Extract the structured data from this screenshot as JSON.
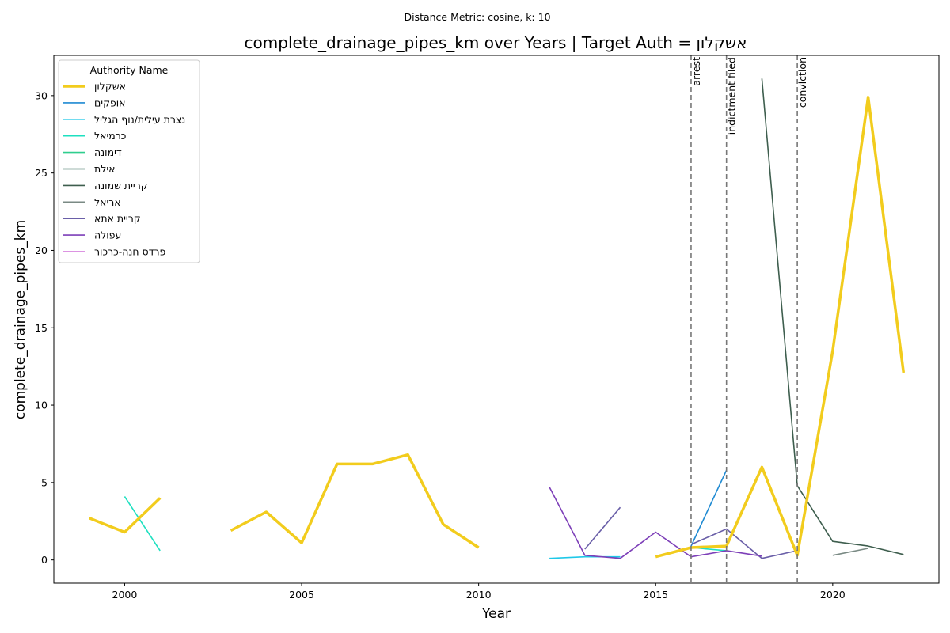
{
  "chart_data": {
    "type": "line",
    "suptitle": "Distance Metric: cosine, k: 10",
    "title": "complete_drainage_pipes_km over Years | Target Auth = אשקלון",
    "xlabel": "Year",
    "ylabel": "complete_drainage_pipes_km",
    "xlim": [
      1998,
      2023
    ],
    "ylim": [
      -1.5,
      32.6
    ],
    "xticks": [
      2000,
      2005,
      2010,
      2015,
      2020
    ],
    "yticks": [
      0,
      5,
      10,
      15,
      20,
      25,
      30
    ],
    "grid": false,
    "legend": {
      "title": "Authority Name",
      "placement": "upper-left"
    },
    "events": [
      {
        "x": 2016,
        "label": "arrest"
      },
      {
        "x": 2017,
        "label": "indictment filed"
      },
      {
        "x": 2019,
        "label": "conviction"
      }
    ],
    "series": [
      {
        "name": "אשקלון",
        "color": "#f2cc1d",
        "width": 3.5,
        "segments": [
          [
            [
              1999,
              2.7
            ],
            [
              2000,
              1.8
            ],
            [
              2001,
              4.0
            ]
          ],
          [
            [
              2003,
              1.9
            ],
            [
              2004,
              3.1
            ],
            [
              2005,
              1.1
            ],
            [
              2006,
              6.2
            ],
            [
              2007,
              6.2
            ],
            [
              2008,
              6.8
            ],
            [
              2009,
              2.3
            ],
            [
              2010,
              0.8
            ]
          ],
          [
            [
              2015,
              0.2
            ],
            [
              2016,
              0.8
            ],
            [
              2017,
              0.9
            ],
            [
              2018,
              6.0
            ],
            [
              2019,
              0.3
            ],
            [
              2020,
              13.5
            ],
            [
              2021,
              29.9
            ],
            [
              2022,
              12.1
            ]
          ]
        ]
      },
      {
        "name": "אופקים",
        "color": "#1f8ad2",
        "width": 1.6,
        "segments": [
          [
            [
              2016,
              0.9
            ],
            [
              2017,
              5.8
            ]
          ]
        ]
      },
      {
        "name": "נצרת עילית/נוף הגליל",
        "color": "#1fc8e8",
        "width": 1.6,
        "segments": [
          [
            [
              2012,
              0.1
            ],
            [
              2013,
              0.2
            ],
            [
              2014,
              0.2
            ]
          ]
        ]
      },
      {
        "name": "כרמיאל",
        "color": "#1ee0c0",
        "width": 1.6,
        "segments": [
          [
            [
              2000,
              4.1
            ],
            [
              2001,
              0.6
            ]
          ],
          [
            [
              2016,
              0.8
            ],
            [
              2017,
              0.6
            ]
          ]
        ]
      },
      {
        "name": "דימונה",
        "color": "#2fce8e",
        "width": 1.6,
        "segments": []
      },
      {
        "name": "אילת",
        "color": "#3a7060",
        "width": 1.6,
        "segments": []
      },
      {
        "name": "קריית שמונה",
        "color": "#3e5e4e",
        "width": 1.6,
        "segments": [
          [
            [
              2018,
              31.1
            ],
            [
              2019,
              4.8
            ],
            [
              2020,
              1.2
            ],
            [
              2021,
              0.9
            ],
            [
              2022,
              0.35
            ]
          ]
        ]
      },
      {
        "name": "אריאל",
        "color": "#7a8a84",
        "width": 1.6,
        "segments": [
          [
            [
              2020,
              0.3
            ],
            [
              2021,
              0.75
            ]
          ]
        ]
      },
      {
        "name": "קריית אתא",
        "color": "#6a5fa8",
        "width": 1.6,
        "segments": [
          [
            [
              2013,
              0.7
            ],
            [
              2014,
              3.4
            ]
          ],
          [
            [
              2016,
              1.0
            ],
            [
              2017,
              2.0
            ],
            [
              2018,
              0.1
            ],
            [
              2019,
              0.6
            ]
          ]
        ]
      },
      {
        "name": "עפולה",
        "color": "#7d3fb8",
        "width": 1.6,
        "segments": [
          [
            [
              2012,
              4.7
            ],
            [
              2013,
              0.3
            ],
            [
              2014,
              0.1
            ],
            [
              2015,
              1.8
            ],
            [
              2016,
              0.2
            ],
            [
              2017,
              0.6
            ],
            [
              2018,
              0.25
            ]
          ]
        ]
      },
      {
        "name": "פרדס חנה-כרכור",
        "color": "#d070d8",
        "width": 1.6,
        "segments": []
      }
    ]
  }
}
